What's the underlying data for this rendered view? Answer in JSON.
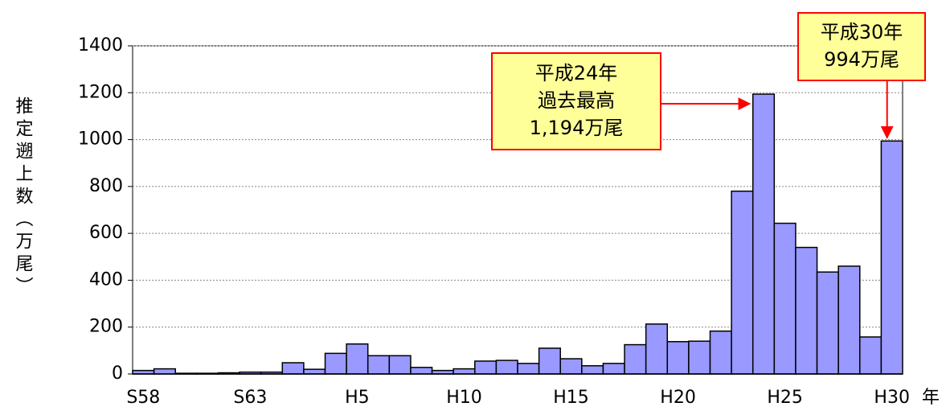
{
  "chart_data": {
    "type": "bar",
    "y_label": "推定遡上数（万尾）",
    "x_unit": "年",
    "categories": [
      "S58",
      null,
      null,
      null,
      null,
      "S63",
      null,
      null,
      null,
      null,
      "H5",
      null,
      null,
      null,
      null,
      "H10",
      null,
      null,
      null,
      null,
      "H15",
      null,
      null,
      null,
      null,
      "H20",
      null,
      null,
      null,
      null,
      "H25",
      null,
      null,
      null,
      null,
      "H30"
    ],
    "values": [
      15,
      22,
      3,
      3,
      5,
      8,
      8,
      48,
      20,
      88,
      128,
      78,
      78,
      28,
      15,
      22,
      55,
      58,
      45,
      110,
      65,
      35,
      45,
      125,
      213,
      138,
      140,
      183,
      780,
      1194,
      643,
      540,
      435,
      460,
      158,
      994
    ],
    "color": "#9999ff",
    "ylim": [
      0,
      1400
    ],
    "yticks": [
      0,
      200,
      400,
      600,
      800,
      1000,
      1200,
      1400
    ],
    "grid": true,
    "annotations": [
      {
        "lines": [
          "平成24年",
          "過去最高",
          "1,194万尾"
        ],
        "target": 29
      },
      {
        "lines": [
          "平成30年",
          "994万尾"
        ],
        "target": 35
      }
    ]
  }
}
